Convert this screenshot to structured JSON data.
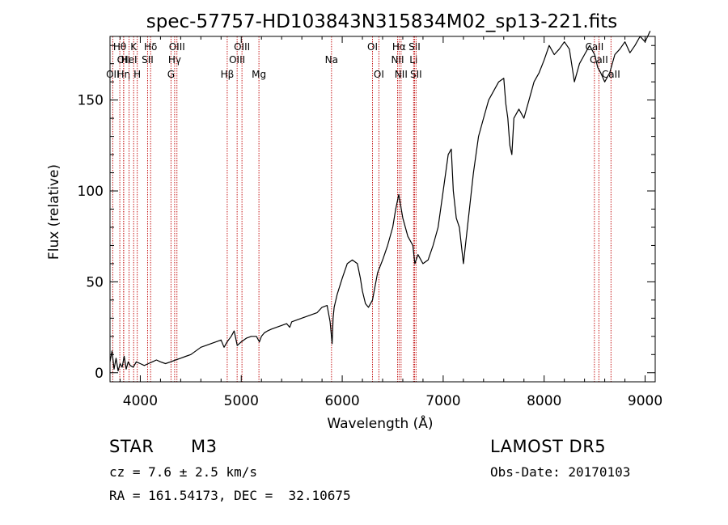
{
  "chart_data": {
    "type": "line",
    "title": "spec-57757-HD103843N315834M02_sp13-221.fits",
    "xlabel": "Wavelength (Å)",
    "ylabel": "Flux (relative)",
    "xlim": [
      3700,
      9100
    ],
    "ylim": [
      -5,
      185
    ],
    "x_ticks": [
      4000,
      5000,
      6000,
      7000,
      8000,
      9000
    ],
    "y_ticks": [
      0,
      50,
      100,
      150
    ],
    "grid": false,
    "legend": "none",
    "line_color": "#000000",
    "marker_color": "#c00000",
    "series": [
      {
        "x": [
          3700,
          3720,
          3740,
          3760,
          3780,
          3800,
          3820,
          3840,
          3860,
          3880,
          3900,
          3930,
          3960,
          4000,
          4040,
          4080,
          4120,
          4160,
          4200,
          4250,
          4300,
          4350,
          4400,
          4450,
          4500,
          4550,
          4600,
          4650,
          4700,
          4750,
          4800,
          4830,
          4860,
          4900,
          4930,
          4960,
          5000,
          5050,
          5100,
          5150,
          5180,
          5200,
          5230,
          5260,
          5300,
          5350,
          5400,
          5450,
          5480,
          5500,
          5550,
          5600,
          5650,
          5700,
          5750,
          5800,
          5850,
          5880,
          5900,
          5910,
          5920,
          5950,
          6000,
          6050,
          6100,
          6150,
          6180,
          6200,
          6230,
          6260,
          6300,
          6350,
          6400,
          6450,
          6500,
          6530,
          6560,
          6600,
          6650,
          6700,
          6720,
          6750,
          6800,
          6850,
          6900,
          6950,
          7000,
          7050,
          7080,
          7100,
          7130,
          7160,
          7200,
          7250,
          7300,
          7350,
          7400,
          7450,
          7500,
          7550,
          7600,
          7620,
          7640,
          7660,
          7680,
          7700,
          7750,
          7800,
          7850,
          7900,
          7950,
          8000,
          8050,
          8100,
          8150,
          8200,
          8250,
          8300,
          8350,
          8400,
          8450,
          8500,
          8530,
          8560,
          8600,
          8650,
          8700,
          8750,
          8800,
          8850,
          8900,
          8950,
          9000,
          9050
        ],
        "y": [
          6,
          12,
          2,
          8,
          1,
          5,
          3,
          9,
          2,
          6,
          4,
          3,
          6,
          5,
          4,
          5,
          6,
          7,
          6,
          5,
          6,
          7,
          8,
          9,
          10,
          12,
          14,
          15,
          16,
          17,
          18,
          14,
          17,
          20,
          23,
          15,
          17,
          19,
          20,
          20,
          17,
          20,
          22,
          23,
          24,
          25,
          26,
          27,
          25,
          28,
          29,
          30,
          31,
          32,
          33,
          36,
          37,
          28,
          16,
          30,
          36,
          43,
          52,
          60,
          62,
          60,
          52,
          45,
          38,
          36,
          40,
          55,
          62,
          70,
          80,
          90,
          98,
          85,
          75,
          70,
          60,
          65,
          60,
          62,
          70,
          80,
          100,
          120,
          123,
          100,
          85,
          80,
          60,
          85,
          110,
          130,
          140,
          150,
          155,
          160,
          162,
          148,
          140,
          125,
          120,
          140,
          145,
          140,
          150,
          160,
          165,
          172,
          180,
          175,
          178,
          182,
          178,
          160,
          170,
          175,
          180,
          175,
          168,
          165,
          160,
          165,
          175,
          178,
          182,
          176,
          180,
          185,
          182,
          188
        ]
      }
    ],
    "line_marks": [
      {
        "x": 3797,
        "label": "Hθ",
        "row": 1
      },
      {
        "x": 3835,
        "label": "OII",
        "row": 2
      },
      {
        "x": 3727,
        "label": "OII",
        "row": 3
      },
      {
        "x": 3835,
        "label": "Hη",
        "row": 3
      },
      {
        "x": 3889,
        "label": "HeI",
        "row": 2
      },
      {
        "x": 3934,
        "label": "K",
        "row": 1
      },
      {
        "x": 3970,
        "label": "H",
        "row": 3
      },
      {
        "x": 4072,
        "label": "SII",
        "row": 2
      },
      {
        "x": 4102,
        "label": "Hδ",
        "row": 1
      },
      {
        "x": 4304,
        "label": "G",
        "row": 3
      },
      {
        "x": 4340,
        "label": "Hγ",
        "row": 2
      },
      {
        "x": 4363,
        "label": "OIII",
        "row": 1
      },
      {
        "x": 4861,
        "label": "Hβ",
        "row": 3
      },
      {
        "x": 4959,
        "label": "OIII",
        "row": 2
      },
      {
        "x": 5007,
        "label": "OIII",
        "row": 1
      },
      {
        "x": 5175,
        "label": "Mg",
        "row": 3
      },
      {
        "x": 5894,
        "label": "Na",
        "row": 2
      },
      {
        "x": 6300,
        "label": "OI",
        "row": 1
      },
      {
        "x": 6363,
        "label": "OI",
        "row": 3
      },
      {
        "x": 6548,
        "label": "NII",
        "row": 2
      },
      {
        "x": 6563,
        "label": "Hα",
        "row": 1
      },
      {
        "x": 6583,
        "label": "NII",
        "row": 3
      },
      {
        "x": 6707,
        "label": "Li",
        "row": 2
      },
      {
        "x": 6716,
        "label": "SII",
        "row": 1
      },
      {
        "x": 6731,
        "label": "SII",
        "row": 3
      },
      {
        "x": 8498,
        "label": "CaII",
        "row": 1
      },
      {
        "x": 8542,
        "label": "CaII",
        "row": 2
      },
      {
        "x": 8662,
        "label": "CaII",
        "row": 3
      }
    ]
  },
  "info": {
    "object_class": "STAR",
    "subclass": "M3",
    "survey": "LAMOST DR5",
    "redshift": "cz = 7.6 ± 2.5 km/s",
    "obs_date": "Obs-Date: 20170103",
    "coords": "RA = 161.54173, DEC =  32.10675"
  }
}
